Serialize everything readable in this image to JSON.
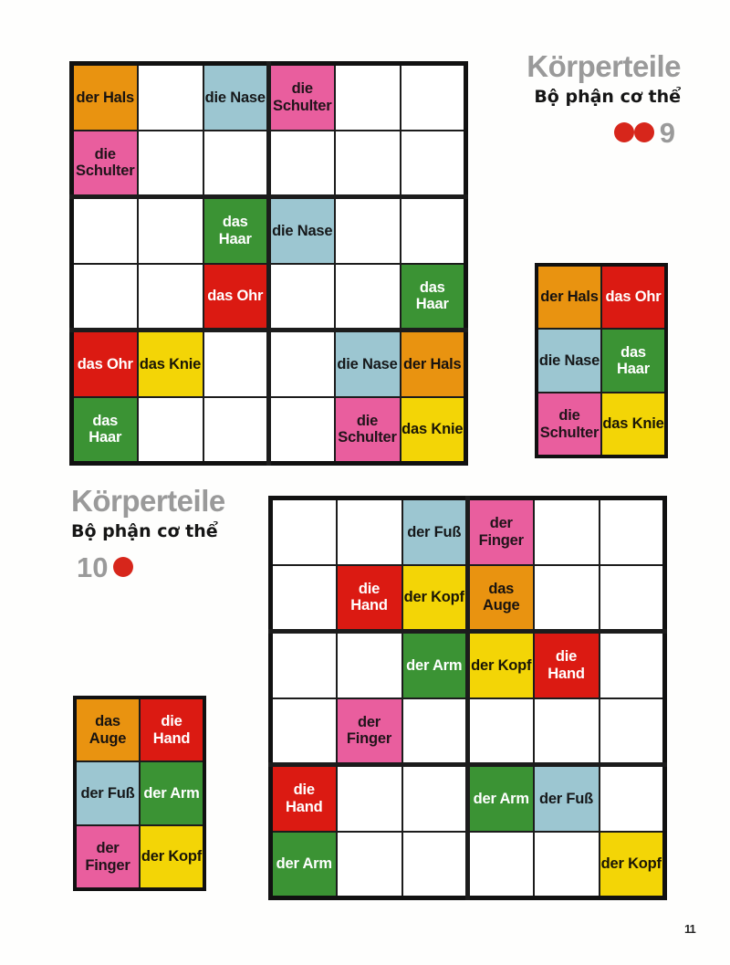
{
  "page": {
    "number": "11"
  },
  "colors": {
    "orange": {
      "bg": "#E99310",
      "fg": "#181310"
    },
    "red": {
      "bg": "#DB1A12",
      "fg": "#FFFFFF"
    },
    "blue": {
      "bg": "#9CC6D1",
      "fg": "#16181A"
    },
    "green": {
      "bg": "#3B9334",
      "fg": "#FFFFFF"
    },
    "pink": {
      "bg": "#E95E9E",
      "fg": "#20141A"
    },
    "yellow": {
      "bg": "#F3D506",
      "fg": "#1A1607"
    },
    "title_gray": "#9A9A9A",
    "dot_red": "#D7261B",
    "grid_line": "#1C1C1C"
  },
  "puzzles": [
    {
      "id": "9",
      "title": "Körperteile",
      "subtitle": "Bộ phận cơ thể",
      "number": "9",
      "dots_before": 2,
      "dots_after": 0,
      "grid": [
        [
          {
            "text": "der Hals",
            "color": "orange"
          },
          null,
          {
            "text": "die Nase",
            "color": "blue"
          },
          {
            "text": "die\nSchulter",
            "color": "pink"
          },
          null,
          null
        ],
        [
          {
            "text": "die\nSchulter",
            "color": "pink"
          },
          null,
          null,
          null,
          null,
          null
        ],
        [
          null,
          null,
          {
            "text": "das\nHaar",
            "color": "green"
          },
          {
            "text": "die Nase",
            "color": "blue"
          },
          null,
          null
        ],
        [
          null,
          null,
          {
            "text": "das Ohr",
            "color": "red"
          },
          null,
          null,
          {
            "text": "das\nHaar",
            "color": "green"
          }
        ],
        [
          {
            "text": "das Ohr",
            "color": "red"
          },
          {
            "text": "das Knie",
            "color": "yellow"
          },
          null,
          null,
          {
            "text": "die Nase",
            "color": "blue"
          },
          {
            "text": "der Hals",
            "color": "orange"
          }
        ],
        [
          {
            "text": "das\nHaar",
            "color": "green"
          },
          null,
          null,
          null,
          {
            "text": "die\nSchulter",
            "color": "pink"
          },
          {
            "text": "das Knie",
            "color": "yellow"
          }
        ]
      ],
      "key": [
        [
          {
            "text": "der Hals",
            "color": "orange"
          },
          {
            "text": "das Ohr",
            "color": "red"
          }
        ],
        [
          {
            "text": "die Nase",
            "color": "blue"
          },
          {
            "text": "das\nHaar",
            "color": "green"
          }
        ],
        [
          {
            "text": "die\nSchulter",
            "color": "pink"
          },
          {
            "text": "das Knie",
            "color": "yellow"
          }
        ]
      ]
    },
    {
      "id": "10",
      "title": "Körperteile",
      "subtitle": "Bộ phận cơ thể",
      "number": "10",
      "dots_before": 0,
      "dots_after": 1,
      "grid": [
        [
          null,
          null,
          {
            "text": "der Fuß",
            "color": "blue"
          },
          {
            "text": "der\nFinger",
            "color": "pink"
          },
          null,
          null
        ],
        [
          null,
          {
            "text": "die\nHand",
            "color": "red"
          },
          {
            "text": "der Kopf",
            "color": "yellow"
          },
          {
            "text": "das\nAuge",
            "color": "orange"
          },
          null,
          null
        ],
        [
          null,
          null,
          {
            "text": "der Arm",
            "color": "green"
          },
          {
            "text": "der Kopf",
            "color": "yellow"
          },
          {
            "text": "die\nHand",
            "color": "red"
          },
          null
        ],
        [
          null,
          {
            "text": "der\nFinger",
            "color": "pink"
          },
          null,
          null,
          null,
          null
        ],
        [
          {
            "text": "die\nHand",
            "color": "red"
          },
          null,
          null,
          {
            "text": "der Arm",
            "color": "green"
          },
          {
            "text": "der Fuß",
            "color": "blue"
          },
          null
        ],
        [
          {
            "text": "der Arm",
            "color": "green"
          },
          null,
          null,
          null,
          null,
          {
            "text": "der Kopf",
            "color": "yellow"
          }
        ]
      ],
      "key": [
        [
          {
            "text": "das\nAuge",
            "color": "orange"
          },
          {
            "text": "die\nHand",
            "color": "red"
          }
        ],
        [
          {
            "text": "der Fuß",
            "color": "blue"
          },
          {
            "text": "der Arm",
            "color": "green"
          }
        ],
        [
          {
            "text": "der\nFinger",
            "color": "pink"
          },
          {
            "text": "der Kopf",
            "color": "yellow"
          }
        ]
      ]
    }
  ]
}
